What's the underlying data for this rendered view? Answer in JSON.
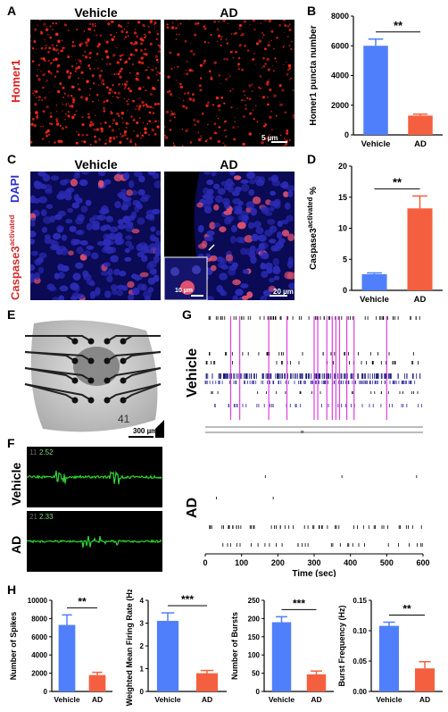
{
  "panels": {
    "A": {
      "letter": "A",
      "left_label": "Vehicle",
      "right_label": "AD",
      "ylabel": "Homer1",
      "scale": "5 µm"
    },
    "B": {
      "letter": "B"
    },
    "C": {
      "letter": "C",
      "left_label": "Vehicle",
      "right_label": "AD",
      "ylabel_dapi": "DAPI",
      "ylabel_casp": "Caspase3",
      "ylabel_casp_sup": "activated",
      "scale_inset": "10 µm",
      "scale_main": "20 µm"
    },
    "D": {
      "letter": "D"
    },
    "E": {
      "letter": "E",
      "electrode_no": "41",
      "scale": "300 µm"
    },
    "F": {
      "letter": "F",
      "vehicle_label": "Vehicle",
      "ad_label": "AD",
      "trace1_num": "2.52",
      "trace1_idx": "11",
      "trace2_num": "2.33",
      "trace2_idx": "21"
    },
    "G": {
      "letter": "G",
      "vehicle_label": "Vehicle",
      "ad_label": "AD"
    },
    "H": {
      "letter": "H"
    }
  },
  "chart_data": [
    {
      "id": "B",
      "type": "bar",
      "categories": [
        "Vehicle",
        "AD"
      ],
      "values": [
        6000,
        1300
      ],
      "errors": [
        450,
        100
      ],
      "ylabel": "Homer1 puncta number",
      "ylim": [
        0,
        8000
      ],
      "yticks": [
        0,
        2000,
        4000,
        6000,
        8000
      ],
      "significance": "**",
      "colors": [
        "#4f7ffa",
        "#f4603f"
      ]
    },
    {
      "id": "D",
      "type": "bar",
      "categories": [
        "Vehicle",
        "AD"
      ],
      "values": [
        2.6,
        13.2
      ],
      "errors": [
        0.2,
        2.0
      ],
      "ylabel": "Caspase3",
      "ylabel_sup": "activated",
      "ylabel_suffix": " %",
      "ylim": [
        0,
        20
      ],
      "yticks": [
        0,
        5,
        10,
        15,
        20
      ],
      "significance": "**",
      "colors": [
        "#4f7ffa",
        "#f4603f"
      ]
    },
    {
      "id": "G",
      "type": "scatter",
      "xlabel": "Time (sec)",
      "xlim": [
        0,
        600
      ],
      "xticks": [
        0,
        100,
        200,
        300,
        400,
        500,
        600
      ]
    },
    {
      "id": "H1",
      "type": "bar",
      "categories": [
        "Vehicle",
        "AD"
      ],
      "values": [
        7300,
        1800
      ],
      "errors": [
        1100,
        300
      ],
      "ylabel": "Number of Spikes",
      "ylim": [
        0,
        10000
      ],
      "yticks": [
        0,
        2000,
        4000,
        6000,
        8000,
        10000
      ],
      "significance": "**",
      "colors": [
        "#4f7ffa",
        "#f4603f"
      ]
    },
    {
      "id": "H2",
      "type": "bar",
      "categories": [
        "Vehicle",
        "AD"
      ],
      "values": [
        3.1,
        0.8
      ],
      "errors": [
        0.35,
        0.12
      ],
      "ylabel": "Weighted Mean Firing Rate (Hz)",
      "ylim": [
        0,
        4
      ],
      "yticks": [
        0,
        1,
        2,
        3,
        4
      ],
      "significance": "***",
      "colors": [
        "#4f7ffa",
        "#f4603f"
      ]
    },
    {
      "id": "H3",
      "type": "bar",
      "categories": [
        "Vehicle",
        "AD"
      ],
      "values": [
        190,
        47
      ],
      "errors": [
        15,
        9
      ],
      "ylabel": "Number of Bursts",
      "ylim": [
        0,
        250
      ],
      "yticks": [
        0,
        50,
        100,
        150,
        200,
        250
      ],
      "significance": "***",
      "colors": [
        "#4f7ffa",
        "#f4603f"
      ]
    },
    {
      "id": "H4",
      "type": "bar",
      "categories": [
        "Vehicle",
        "AD"
      ],
      "values": [
        0.108,
        0.038
      ],
      "errors": [
        0.006,
        0.011
      ],
      "ylabel": "Burst Frequency (Hz)",
      "ylim": [
        0,
        0.15
      ],
      "yticks": [
        0,
        0.05,
        0.1,
        0.15
      ],
      "ytick_labels": [
        "0.00",
        "0.05",
        "0.10",
        "0.15"
      ],
      "significance": "**",
      "colors": [
        "#4f7ffa",
        "#f4603f"
      ]
    }
  ]
}
